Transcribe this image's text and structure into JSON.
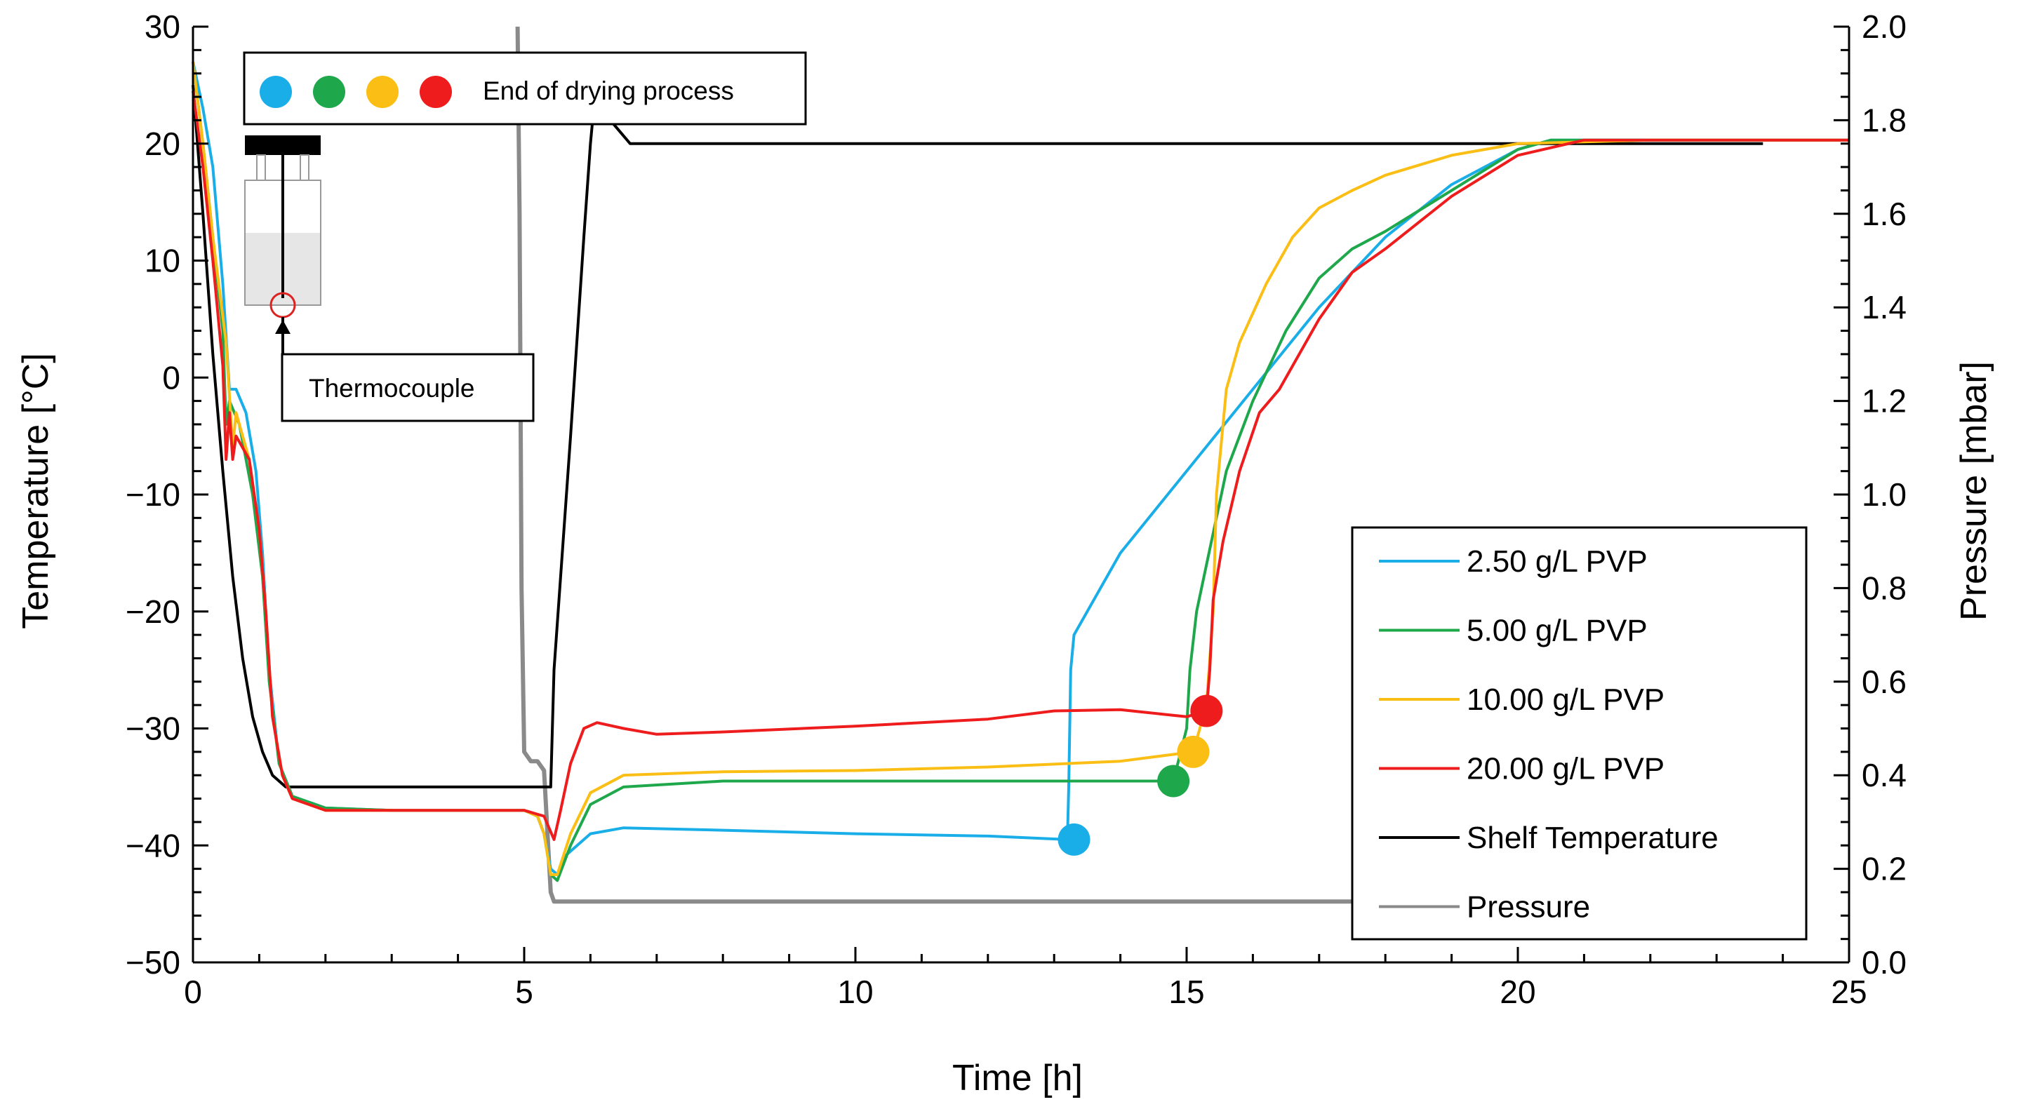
{
  "chart_data": {
    "type": "line",
    "xlabel": "Time [h]",
    "ylabel_left": "Temperature [°C]",
    "ylabel_right": "Pressure [mbar]",
    "xlim": [
      0,
      25
    ],
    "ylim_left": [
      -50,
      30
    ],
    "ylim_right": [
      0.0,
      2.0
    ],
    "x_ticks": [
      "0",
      "5",
      "10",
      "15",
      "20",
      "25"
    ],
    "y_ticks_left": [
      "30",
      "20",
      "10",
      "0",
      "−10",
      "−20",
      "−30",
      "−40",
      "−50"
    ],
    "y_ticks_right": [
      "2.0",
      "1.8",
      "1.6",
      "1.4",
      "1.2",
      "1.0",
      "0.8",
      "0.6",
      "0.4",
      "0.2",
      "0.0"
    ],
    "grid": false,
    "legend_position": "bottom-right",
    "end_marker_label": "End of drying process",
    "thermocouple_label": "Thermocouple",
    "series": [
      {
        "name": "2.50 g/L PVP",
        "color": "#1aaee9",
        "axis": "left",
        "points": [
          [
            0,
            27
          ],
          [
            0.15,
            23
          ],
          [
            0.3,
            18
          ],
          [
            0.45,
            8
          ],
          [
            0.55,
            -1
          ],
          [
            0.65,
            -1
          ],
          [
            0.8,
            -3
          ],
          [
            0.95,
            -8
          ],
          [
            1.05,
            -15
          ],
          [
            1.15,
            -25
          ],
          [
            1.3,
            -33
          ],
          [
            1.5,
            -35.8
          ],
          [
            2,
            -36.8
          ],
          [
            3,
            -37
          ],
          [
            4,
            -37
          ],
          [
            5,
            -37
          ],
          [
            5.2,
            -37.5
          ],
          [
            5.3,
            -39
          ],
          [
            5.4,
            -42
          ],
          [
            5.5,
            -42.5
          ],
          [
            5.6,
            -41
          ],
          [
            5.8,
            -40
          ],
          [
            6,
            -39
          ],
          [
            6.5,
            -38.5
          ],
          [
            8,
            -38.7
          ],
          [
            10,
            -39
          ],
          [
            12,
            -39.2
          ],
          [
            13.2,
            -39.5
          ],
          [
            13.22,
            -35
          ],
          [
            13.25,
            -25
          ],
          [
            13.3,
            -22
          ],
          [
            13.6,
            -19
          ],
          [
            14,
            -15
          ],
          [
            15,
            -8
          ],
          [
            16,
            -1
          ],
          [
            17,
            6
          ],
          [
            18,
            12
          ],
          [
            19,
            16.5
          ],
          [
            20,
            19.5
          ],
          [
            20.5,
            20.3
          ],
          [
            22,
            20.3
          ],
          [
            25,
            20.3
          ]
        ],
        "end_marker": [
          13.3,
          -39.5
        ]
      },
      {
        "name": "5.00 g/L PVP",
        "color": "#1ea84b",
        "axis": "left",
        "points": [
          [
            0,
            27
          ],
          [
            0.15,
            20
          ],
          [
            0.3,
            12
          ],
          [
            0.45,
            4
          ],
          [
            0.5,
            -4
          ],
          [
            0.55,
            -2
          ],
          [
            0.7,
            -4
          ],
          [
            0.9,
            -10
          ],
          [
            1.05,
            -17
          ],
          [
            1.15,
            -26
          ],
          [
            1.3,
            -33
          ],
          [
            1.5,
            -35.8
          ],
          [
            2,
            -36.8
          ],
          [
            3,
            -37
          ],
          [
            4,
            -37
          ],
          [
            5,
            -37
          ],
          [
            5.2,
            -37.5
          ],
          [
            5.3,
            -39
          ],
          [
            5.4,
            -42.5
          ],
          [
            5.5,
            -43
          ],
          [
            5.7,
            -40
          ],
          [
            6,
            -36.5
          ],
          [
            6.5,
            -35
          ],
          [
            8,
            -34.5
          ],
          [
            10,
            -34.5
          ],
          [
            12,
            -34.5
          ],
          [
            14,
            -34.5
          ],
          [
            14.8,
            -34.5
          ],
          [
            15,
            -30
          ],
          [
            15.05,
            -25
          ],
          [
            15.15,
            -20
          ],
          [
            15.3,
            -16
          ],
          [
            15.6,
            -8
          ],
          [
            16,
            -2
          ],
          [
            16.5,
            4
          ],
          [
            17,
            8.5
          ],
          [
            17.5,
            11
          ],
          [
            18,
            12.5
          ],
          [
            19,
            16
          ],
          [
            20,
            19.5
          ],
          [
            20.5,
            20.3
          ],
          [
            22,
            20.3
          ],
          [
            25,
            20.3
          ]
        ],
        "end_marker": [
          14.8,
          -34.5
        ]
      },
      {
        "name": "10.00 g/L PVP",
        "color": "#fbbe14",
        "axis": "left",
        "points": [
          [
            0,
            27
          ],
          [
            0.15,
            20
          ],
          [
            0.3,
            12
          ],
          [
            0.5,
            3
          ],
          [
            0.6,
            -6
          ],
          [
            0.65,
            -3
          ],
          [
            0.85,
            -7
          ],
          [
            1.0,
            -13
          ],
          [
            1.1,
            -20
          ],
          [
            1.2,
            -29
          ],
          [
            1.35,
            -34
          ],
          [
            1.5,
            -36
          ],
          [
            2,
            -37
          ],
          [
            3,
            -37
          ],
          [
            4,
            -37
          ],
          [
            5,
            -37
          ],
          [
            5.2,
            -37.5
          ],
          [
            5.3,
            -39
          ],
          [
            5.4,
            -42.5
          ],
          [
            5.5,
            -42.5
          ],
          [
            5.7,
            -39
          ],
          [
            6,
            -35.5
          ],
          [
            6.5,
            -34
          ],
          [
            8,
            -33.7
          ],
          [
            10,
            -33.6
          ],
          [
            12,
            -33.3
          ],
          [
            14,
            -32.8
          ],
          [
            15.1,
            -32
          ],
          [
            15.3,
            -28
          ],
          [
            15.4,
            -20
          ],
          [
            15.45,
            -10
          ],
          [
            15.6,
            -1
          ],
          [
            15.8,
            3
          ],
          [
            16.2,
            8
          ],
          [
            16.6,
            12
          ],
          [
            17,
            14.5
          ],
          [
            17.5,
            16
          ],
          [
            18,
            17.3
          ],
          [
            19,
            19
          ],
          [
            20,
            20
          ],
          [
            22,
            20.3
          ],
          [
            25,
            20.3
          ]
        ],
        "end_marker": [
          15.1,
          -32
        ]
      },
      {
        "name": "20.00 g/L PVP",
        "color": "#ee1c1c",
        "axis": "left",
        "points": [
          [
            0,
            24.5
          ],
          [
            0.15,
            18
          ],
          [
            0.3,
            10
          ],
          [
            0.45,
            1
          ],
          [
            0.5,
            -7
          ],
          [
            0.55,
            -3
          ],
          [
            0.6,
            -7
          ],
          [
            0.65,
            -5
          ],
          [
            0.85,
            -7
          ],
          [
            1.0,
            -13
          ],
          [
            1.1,
            -20
          ],
          [
            1.2,
            -29
          ],
          [
            1.35,
            -34
          ],
          [
            1.5,
            -36
          ],
          [
            2,
            -37
          ],
          [
            3,
            -37
          ],
          [
            4,
            -37
          ],
          [
            5,
            -37
          ],
          [
            5.3,
            -37.5
          ],
          [
            5.45,
            -39.5
          ],
          [
            5.55,
            -37
          ],
          [
            5.7,
            -33
          ],
          [
            5.9,
            -30
          ],
          [
            6.1,
            -29.5
          ],
          [
            6.5,
            -30
          ],
          [
            7,
            -30.5
          ],
          [
            8,
            -30.3
          ],
          [
            10,
            -29.8
          ],
          [
            12,
            -29.2
          ],
          [
            13,
            -28.5
          ],
          [
            14,
            -28.4
          ],
          [
            15,
            -29
          ],
          [
            15.3,
            -28.5
          ],
          [
            15.35,
            -25
          ],
          [
            15.4,
            -19
          ],
          [
            15.55,
            -14
          ],
          [
            15.8,
            -8
          ],
          [
            16.1,
            -3
          ],
          [
            16.4,
            -1
          ],
          [
            16.6,
            1
          ],
          [
            17,
            5
          ],
          [
            17.5,
            9
          ],
          [
            18,
            11
          ],
          [
            19,
            15.5
          ],
          [
            20,
            19
          ],
          [
            21,
            20.3
          ],
          [
            22,
            20.3
          ],
          [
            25,
            20.3
          ]
        ],
        "end_marker": [
          15.3,
          -28.5
        ]
      },
      {
        "name": "Shelf Temperature",
        "color": "#000000",
        "axis": "left",
        "points": [
          [
            0,
            25
          ],
          [
            0.15,
            14
          ],
          [
            0.3,
            2
          ],
          [
            0.45,
            -8
          ],
          [
            0.6,
            -17
          ],
          [
            0.75,
            -24
          ],
          [
            0.9,
            -29
          ],
          [
            1.05,
            -32
          ],
          [
            1.2,
            -34
          ],
          [
            1.4,
            -35
          ],
          [
            2,
            -35
          ],
          [
            3,
            -35
          ],
          [
            4,
            -35
          ],
          [
            5,
            -35
          ],
          [
            5.4,
            -35
          ],
          [
            5.45,
            -25
          ],
          [
            5.7,
            -5
          ],
          [
            5.9,
            12
          ],
          [
            6.0,
            20
          ],
          [
            6.05,
            23
          ],
          [
            6.1,
            23
          ],
          [
            6.3,
            22
          ],
          [
            6.6,
            20
          ],
          [
            7,
            20
          ],
          [
            10,
            20
          ],
          [
            15,
            20
          ],
          [
            20,
            20
          ],
          [
            23.7,
            20
          ]
        ]
      },
      {
        "name": "Pressure",
        "color": "#8a8a8a",
        "axis": "right",
        "points": [
          [
            4.9,
            2.0
          ],
          [
            4.93,
            1.6
          ],
          [
            4.96,
            0.8
          ],
          [
            5.0,
            0.45
          ],
          [
            5.1,
            0.43
          ],
          [
            5.2,
            0.43
          ],
          [
            5.3,
            0.41
          ],
          [
            5.4,
            0.15
          ],
          [
            5.45,
            0.13
          ],
          [
            6,
            0.13
          ],
          [
            10,
            0.13
          ],
          [
            15,
            0.13
          ],
          [
            17.5,
            0.13
          ]
        ]
      }
    ]
  }
}
